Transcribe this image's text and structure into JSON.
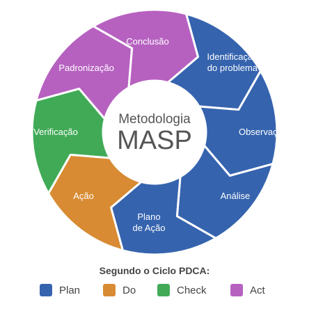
{
  "center": {
    "line1": "Metodologia",
    "line2": "MASP"
  },
  "colors": {
    "plan": "#3563AE",
    "do": "#D88B33",
    "check": "#40AA56",
    "act": "#B661C0"
  },
  "segments": [
    {
      "phase": "plan",
      "lines": [
        "Identificação",
        "do problema"
      ]
    },
    {
      "phase": "plan",
      "lines": [
        "Observação"
      ]
    },
    {
      "phase": "plan",
      "lines": [
        "Análise"
      ]
    },
    {
      "phase": "plan",
      "lines": [
        "Plano",
        "de Ação"
      ]
    },
    {
      "phase": "do",
      "lines": [
        "Ação"
      ]
    },
    {
      "phase": "check",
      "lines": [
        "Verificação"
      ]
    },
    {
      "phase": "act",
      "lines": [
        "Padronização"
      ]
    },
    {
      "phase": "act",
      "lines": [
        "Conclusão"
      ]
    }
  ],
  "legend": {
    "title": "Segundo o Ciclo PDCA:",
    "items": [
      {
        "phase": "plan",
        "label": "Plan"
      },
      {
        "phase": "do",
        "label": "Do"
      },
      {
        "phase": "check",
        "label": "Check"
      },
      {
        "phase": "act",
        "label": "Act"
      }
    ]
  }
}
